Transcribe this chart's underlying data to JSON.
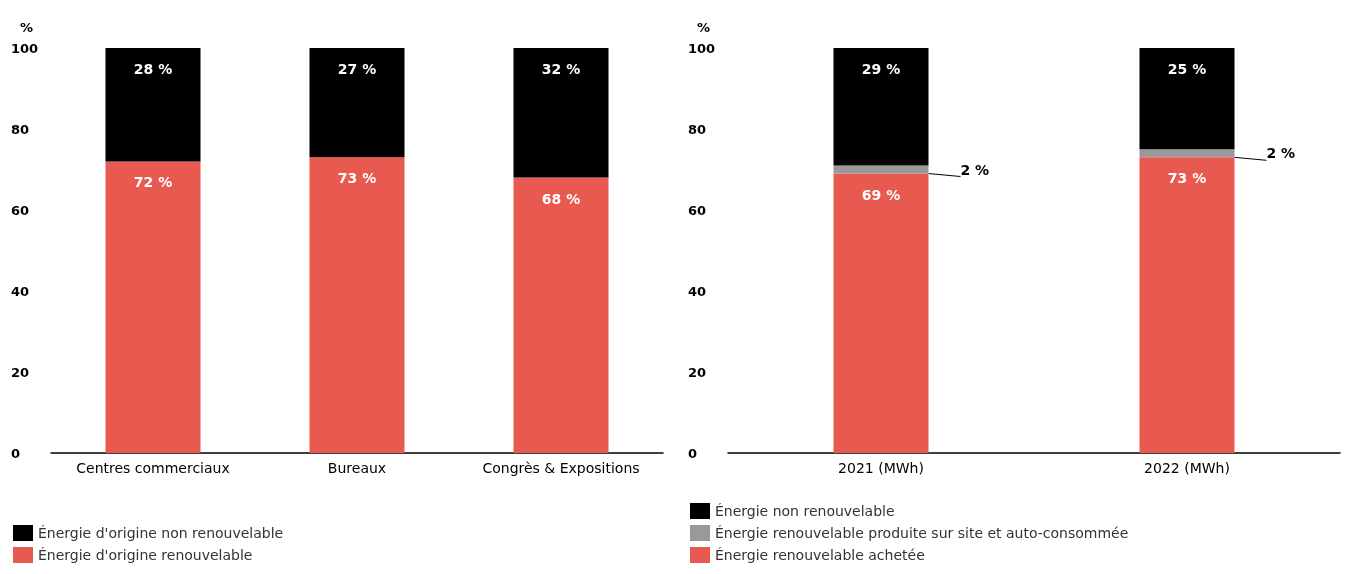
{
  "chart_data": [
    {
      "type": "bar",
      "stacked": true,
      "ylabel": "%",
      "categories": [
        "Centres commerciaux",
        "Bureaux",
        "Congrès & Expositions"
      ],
      "ylim": [
        0,
        100
      ],
      "yticks": [
        0,
        20,
        40,
        60,
        80,
        100
      ],
      "grid": false,
      "legend": "bottom left",
      "series": [
        {
          "name": "Énergie d'origine renouvelable",
          "color": "#e85a4f",
          "values": [
            72,
            73,
            68
          ],
          "value_labels": [
            "72 %",
            "73 %",
            "68 %"
          ]
        },
        {
          "name": "Énergie d'origine non renouvelable",
          "color": "#000000",
          "values": [
            28,
            27,
            32
          ],
          "value_labels": [
            "28 %",
            "27 %",
            "32 %"
          ]
        }
      ]
    },
    {
      "type": "bar",
      "stacked": true,
      "ylabel": "%",
      "categories": [
        "2021 (MWh)",
        "2022 (MWh)"
      ],
      "ylim": [
        0,
        100
      ],
      "yticks": [
        0,
        20,
        40,
        60,
        80,
        100
      ],
      "grid": false,
      "legend": "bottom left",
      "series": [
        {
          "name": "Énergie renouvelable achetée",
          "color": "#e85a4f",
          "values": [
            69,
            73
          ],
          "value_labels": [
            "69 %",
            "73 %"
          ]
        },
        {
          "name": "Énergie renouvelable produite sur site et auto-consommée",
          "color": "#999999",
          "values": [
            2,
            2
          ],
          "value_labels": [
            "2 %",
            "2 %"
          ]
        },
        {
          "name": "Énergie non renouvelable",
          "color": "#000000",
          "values": [
            29,
            25
          ],
          "value_labels": [
            "29 %",
            "25 %"
          ]
        }
      ]
    }
  ]
}
